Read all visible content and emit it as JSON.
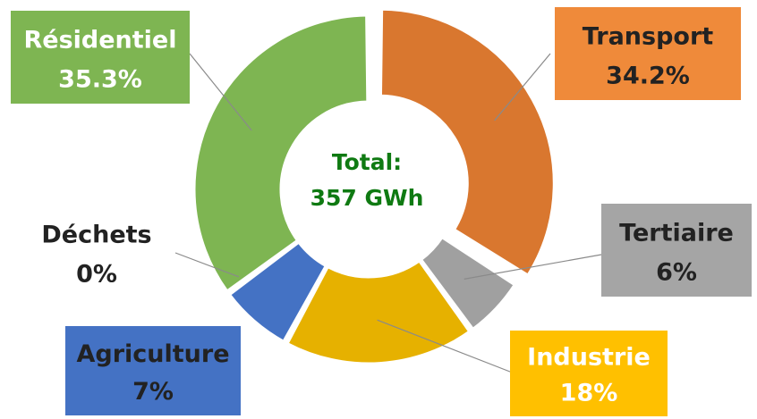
{
  "chart_data": {
    "type": "pie",
    "donut": true,
    "center": {
      "line1": "Total:",
      "line2": "357 GWh"
    },
    "slices": [
      {
        "label": "Transport",
        "percent_label": "34.2%",
        "value": 34.2,
        "color": "#D9772F",
        "box_color": "#EF8A3A",
        "text_color": "#222222",
        "exploded": true
      },
      {
        "label": "Tertiaire",
        "percent_label": "6%",
        "value": 6,
        "color": "#A0A0A0",
        "box_color": "#A5A5A5",
        "text_color": "#222222"
      },
      {
        "label": "Industrie",
        "percent_label": "18%",
        "value": 18,
        "color": "#E6B100",
        "box_color": "#FFC000",
        "text_color": "#FFFFFF"
      },
      {
        "label": "Agriculture",
        "percent_label": "7%",
        "value": 7,
        "color": "#4472C4",
        "box_color": "#4472C4",
        "text_color": "#222222"
      },
      {
        "label": "Déchets",
        "percent_label": "0%",
        "value": 0,
        "color": "#FFFFFF",
        "box_color": "none",
        "text_color": "#222222"
      },
      {
        "label": "Résidentiel",
        "percent_label": "35.3%",
        "value": 35.3,
        "color": "#7EB552",
        "box_color": "#7EB552",
        "text_color": "#FFFFFF"
      }
    ],
    "colors": {
      "center_text": "#0F7A12",
      "leader_line": "#8A8A8A"
    }
  }
}
